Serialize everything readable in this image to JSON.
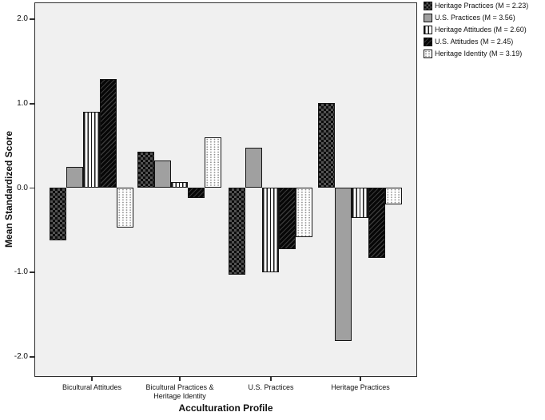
{
  "figure": {
    "y_axis_title": "Mean Standardized Score",
    "x_axis_title": "Acculturation Profile"
  },
  "colors": {
    "plot_background": "#f0f0f0",
    "frame": "#2e2e2e",
    "bar_border": "#141414",
    "solid_gray_fill": "#a0a0a0",
    "checker_dark": "#0d0d0d",
    "checker_light": "#525252",
    "text": "#111111"
  },
  "chart_data": {
    "type": "bar",
    "title": "",
    "xlabel": "Acculturation Profile",
    "ylabel": "Mean Standardized Score",
    "ylim": [
      -2.2,
      2.2
    ],
    "grid": false,
    "legend_position": "top-right",
    "y_ticks": [
      2.0,
      1.0,
      0.0,
      -1.0,
      -2.0
    ],
    "y_tick_labels": [
      "2.0",
      "1.0",
      "0.0",
      "-1.0",
      "-2.0"
    ],
    "categories": [
      "Bicultural Attitudes",
      "Bicultural Practices &\nHeritage Identity",
      "U.S. Practices",
      "Heritage Practices"
    ],
    "series": [
      {
        "name": "Heritage Practices (M = 2.23)",
        "pattern": "checker",
        "values": [
          -0.62,
          0.43,
          -1.03,
          1.0
        ]
      },
      {
        "name": "U.S. Practices (M = 3.56)",
        "pattern": "solid-gray",
        "values": [
          0.25,
          0.32,
          0.47,
          -1.82
        ]
      },
      {
        "name": "Heritage Attitudes (M = 2.60)",
        "pattern": "vertical-lines",
        "values": [
          0.9,
          0.07,
          -1.0,
          -0.36
        ]
      },
      {
        "name": "U.S. Attitudes (M = 2.45)",
        "pattern": "diagonal-dark",
        "values": [
          1.29,
          -0.12,
          -0.73,
          -0.83
        ]
      },
      {
        "name": "Heritage Identity (M = 3.19)",
        "pattern": "dotted",
        "values": [
          -0.47,
          0.6,
          -0.59,
          -0.2
        ]
      }
    ]
  }
}
